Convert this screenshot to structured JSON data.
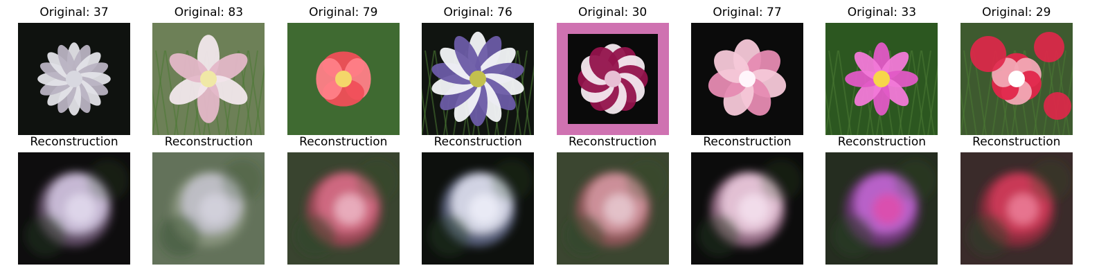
{
  "figure": {
    "columns": [
      {
        "original_title": "Original: 37",
        "reconstruction_title": "Reconstruction",
        "original": {
          "bg": "#0f120f",
          "petal": "#e3e3e8",
          "petal2": "#b9b3c2",
          "center": "#d8d8e0",
          "style": "burst"
        },
        "recon": {
          "bg": "#0e0d0e",
          "petal": "#d7cde8",
          "petal2": "#8d6f95",
          "center": "#e4dff0"
        }
      },
      {
        "original_title": "Original: 83",
        "reconstruction_title": "Reconstruction",
        "original": {
          "bg": "#6d8057",
          "petal": "#f2e7ec",
          "petal2": "#e4b7c8",
          "center": "#f0e8a6",
          "style": "columbine"
        },
        "recon": {
          "bg": "#63725a",
          "petal": "#c7c4d0",
          "petal2": "#9aa38d",
          "center": "#d8d6e2"
        }
      },
      {
        "original_title": "Original: 79",
        "reconstruction_title": "Reconstruction",
        "original": {
          "bg": "#3f6a31",
          "petal": "#f04f58",
          "petal2": "#ff8088",
          "center": "#f4d66a",
          "style": "anthurium"
        },
        "recon": {
          "bg": "#39442f",
          "petal": "#d86f87",
          "petal2": "#c84767",
          "center": "#f0c2cf"
        }
      },
      {
        "original_title": "Original: 76",
        "reconstruction_title": "Reconstruction",
        "original": {
          "bg": "#101410",
          "petal": "#f3f4f8",
          "petal2": "#6b5ba7",
          "center": "#c2c04e",
          "style": "passion"
        },
        "recon": {
          "bg": "#0d100d",
          "petal": "#e6e8f4",
          "petal2": "#7f8bb7",
          "center": "#f1f2fb"
        }
      },
      {
        "original_title": "Original: 30",
        "reconstruction_title": "Reconstruction",
        "original": {
          "bg": "#cf72b1",
          "petal": "#f3e9ef",
          "petal2": "#93134c",
          "center": "#e8bfd4",
          "style": "carnation"
        },
        "recon": {
          "bg": "#3b4630",
          "petal": "#d79aa5",
          "petal2": "#b85d6b",
          "center": "#ead1d8"
        }
      },
      {
        "original_title": "Original: 77",
        "reconstruction_title": "Reconstruction",
        "original": {
          "bg": "#0b0b0b",
          "petal": "#f6c8d8",
          "petal2": "#e68bb2",
          "center": "#fff5fb",
          "style": "lotus"
        },
        "recon": {
          "bg": "#0c0c0c",
          "petal": "#f0cfe2",
          "petal2": "#d79ac0",
          "center": "#f6e6f2"
        }
      },
      {
        "original_title": "Original: 33",
        "reconstruction_title": "Reconstruction",
        "original": {
          "bg": "#2c5720",
          "petal": "#e25ac6",
          "petal2": "#f27ad8",
          "center": "#f7d64a",
          "style": "cosmos"
        },
        "recon": {
          "bg": "#252d20",
          "petal": "#c66ad8",
          "petal2": "#8f3b9e",
          "center": "#e54aa6"
        }
      },
      {
        "original_title": "Original: 29",
        "reconstruction_title": "Reconstruction",
        "original": {
          "bg": "#3e5a2f",
          "petal": "#e1264a",
          "petal2": "#f2a8b5",
          "center": "#ffffff",
          "style": "dianthus"
        },
        "recon": {
          "bg": "#3a2b2a",
          "petal": "#d53b5c",
          "petal2": "#b52a46",
          "center": "#f08aa2"
        }
      }
    ]
  }
}
